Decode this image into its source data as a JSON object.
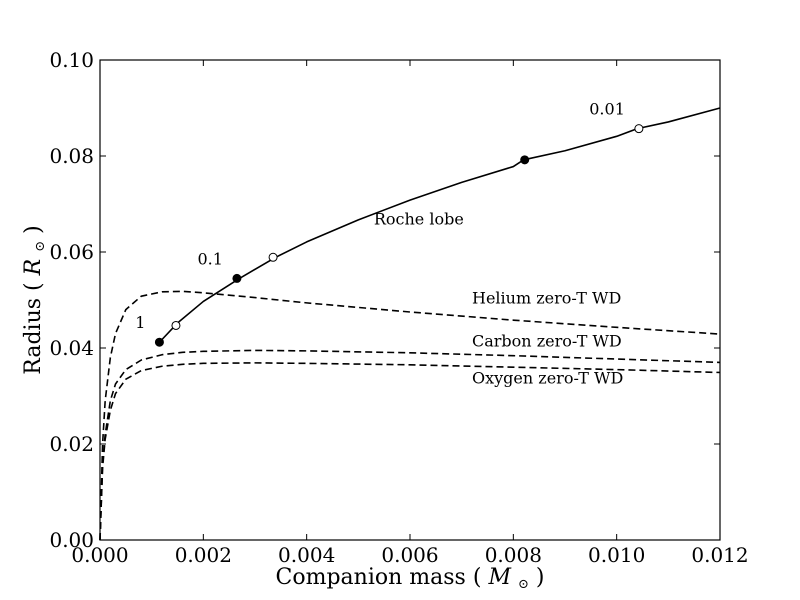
{
  "chart_data": {
    "type": "line",
    "title": "",
    "xlabel": "Companion mass",
    "xlabel_unit": "M",
    "ylabel": "Radius",
    "ylabel_unit": "R",
    "sun_symbol": "⊙",
    "xlim": [
      0.0,
      0.012
    ],
    "ylim": [
      0.0,
      0.1
    ],
    "x_ticks": [
      {
        "v": 0.0,
        "label": "0.000"
      },
      {
        "v": 0.002,
        "label": "0.002"
      },
      {
        "v": 0.004,
        "label": "0.004"
      },
      {
        "v": 0.006,
        "label": "0.006"
      },
      {
        "v": 0.008,
        "label": "0.008"
      },
      {
        "v": 0.01,
        "label": "0.010"
      },
      {
        "v": 0.012,
        "label": "0.012"
      }
    ],
    "y_ticks": [
      {
        "v": 0.0,
        "label": "0.00"
      },
      {
        "v": 0.02,
        "label": "0.02"
      },
      {
        "v": 0.04,
        "label": "0.04"
      },
      {
        "v": 0.06,
        "label": "0.06"
      },
      {
        "v": 0.08,
        "label": "0.08"
      },
      {
        "v": 0.1,
        "label": "0.10"
      }
    ],
    "grid": false,
    "series": [
      {
        "name": "Roche lobe",
        "style": "solid",
        "x": [
          0.00115,
          0.0015,
          0.002,
          0.0027,
          0.0034,
          0.004,
          0.005,
          0.006,
          0.007,
          0.008,
          0.0082,
          0.009,
          0.01,
          0.0104,
          0.011,
          0.012
        ],
        "y": [
          0.0412,
          0.0452,
          0.0497,
          0.0545,
          0.0589,
          0.0621,
          0.0667,
          0.0708,
          0.0745,
          0.0778,
          0.0792,
          0.0811,
          0.0841,
          0.0857,
          0.0871,
          0.09
        ]
      },
      {
        "name": "Helium zero-T WD",
        "style": "dashed",
        "x": [
          0.0,
          5e-05,
          0.0001,
          0.0002,
          0.0003,
          0.0005,
          0.0008,
          0.0012,
          0.0016,
          0.002,
          0.003,
          0.004,
          0.006,
          0.008,
          0.01,
          0.012
        ],
        "y": [
          0.0,
          0.02,
          0.029,
          0.038,
          0.043,
          0.048,
          0.0508,
          0.0517,
          0.0518,
          0.0515,
          0.0505,
          0.0494,
          0.0475,
          0.0458,
          0.0443,
          0.0429
        ]
      },
      {
        "name": "Carbon zero-T WD",
        "style": "dashed",
        "x": [
          0.0,
          5e-05,
          0.0001,
          0.0002,
          0.0003,
          0.0005,
          0.0008,
          0.0012,
          0.0016,
          0.002,
          0.003,
          0.004,
          0.006,
          0.008,
          0.01,
          0.012
        ],
        "y": [
          0.0,
          0.016,
          0.022,
          0.029,
          0.0325,
          0.0355,
          0.0375,
          0.0386,
          0.0391,
          0.0393,
          0.0395,
          0.0394,
          0.039,
          0.0384,
          0.0377,
          0.037
        ]
      },
      {
        "name": "Oxygen zero-T WD",
        "style": "dashed",
        "x": [
          0.0,
          5e-05,
          0.0001,
          0.0002,
          0.0003,
          0.0005,
          0.0008,
          0.0012,
          0.0016,
          0.002,
          0.003,
          0.004,
          0.006,
          0.008,
          0.01,
          0.012
        ],
        "y": [
          0.0,
          0.015,
          0.021,
          0.027,
          0.0305,
          0.0335,
          0.0353,
          0.0362,
          0.0366,
          0.0368,
          0.0369,
          0.0368,
          0.0365,
          0.036,
          0.0355,
          0.0349
        ]
      }
    ],
    "markers": [
      {
        "x": 0.00115,
        "y": 0.0412,
        "fill": "filled",
        "label": "1"
      },
      {
        "x": 0.00147,
        "y": 0.0447,
        "fill": "open"
      },
      {
        "x": 0.00265,
        "y": 0.0545,
        "fill": "filled",
        "label": "0.1"
      },
      {
        "x": 0.00335,
        "y": 0.0589,
        "fill": "open"
      },
      {
        "x": 0.00822,
        "y": 0.0792,
        "fill": "filled"
      },
      {
        "x": 0.01043,
        "y": 0.0857,
        "fill": "open",
        "label": "0.01"
      }
    ],
    "annotations": [
      {
        "text": "Roche lobe",
        "x": 0.0053,
        "y": 0.0657
      },
      {
        "text": "Helium zero-T WD",
        "x": 0.0072,
        "y": 0.0493
      },
      {
        "text": "Carbon zero-T WD",
        "x": 0.0072,
        "y": 0.0403
      },
      {
        "text": "Oxygen zero-T WD",
        "x": 0.0072,
        "y": 0.0326
      }
    ],
    "colors": {
      "line": "#000000",
      "background": "#ffffff"
    }
  }
}
